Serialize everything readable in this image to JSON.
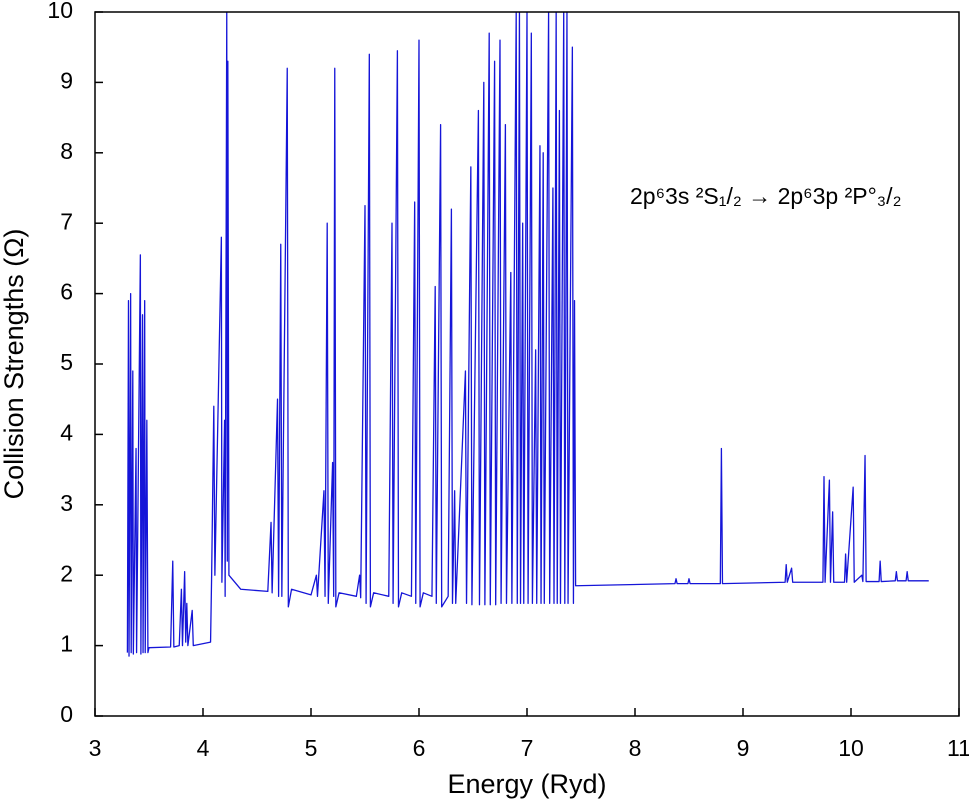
{
  "chart_data": {
    "type": "line",
    "xlabel": "Energy (Ryd)",
    "ylabel": "Collision Strengths (Ω)",
    "annotation": "2p⁶3s ²S₁/₂ → 2p⁶3p ²P°₃/₂",
    "xlim": [
      3,
      11
    ],
    "xticks": [
      3,
      4,
      5,
      6,
      7,
      8,
      9,
      10,
      11
    ],
    "ylim": [
      0,
      10
    ],
    "yticks": [
      0,
      1,
      2,
      3,
      4,
      5,
      6,
      7,
      8,
      9,
      10
    ],
    "series": [
      {
        "color": "#1515d8",
        "x": [
          3.3,
          3.31,
          3.315,
          3.33,
          3.335,
          3.35,
          3.355,
          3.38,
          3.385,
          3.42,
          3.425,
          3.44,
          3.445,
          3.46,
          3.465,
          3.48,
          3.49,
          3.5,
          3.7,
          3.72,
          3.73,
          3.78,
          3.8,
          3.81,
          3.83,
          3.84,
          3.85,
          3.86,
          3.9,
          3.91,
          4.07,
          4.08,
          4.1,
          4.11,
          4.17,
          4.175,
          4.2,
          4.205,
          4.22,
          4.225,
          4.23,
          4.24,
          4.35,
          4.6,
          4.63,
          4.64,
          4.69,
          4.7,
          4.72,
          4.73,
          4.78,
          4.79,
          4.82,
          5.0,
          5.05,
          5.06,
          5.12,
          5.13,
          5.15,
          5.16,
          5.2,
          5.21,
          5.22,
          5.23,
          5.26,
          5.42,
          5.45,
          5.46,
          5.5,
          5.51,
          5.54,
          5.55,
          5.58,
          5.72,
          5.75,
          5.76,
          5.8,
          5.81,
          5.84,
          5.93,
          5.96,
          5.97,
          6.0,
          6.01,
          6.04,
          6.12,
          6.15,
          6.16,
          6.2,
          6.21,
          6.27,
          6.3,
          6.31,
          6.33,
          6.34,
          6.43,
          6.44,
          6.48,
          6.49,
          6.55,
          6.56,
          6.6,
          6.61,
          6.65,
          6.66,
          6.7,
          6.71,
          6.75,
          6.76,
          6.8,
          6.81,
          6.85,
          6.86,
          6.9,
          6.91,
          6.93,
          6.94,
          6.96,
          6.97,
          7.0,
          7.01,
          7.04,
          7.05,
          7.08,
          7.09,
          7.12,
          7.13,
          7.15,
          7.16,
          7.2,
          7.21,
          7.24,
          7.25,
          7.27,
          7.28,
          7.3,
          7.31,
          7.34,
          7.35,
          7.37,
          7.38,
          7.42,
          7.43,
          7.44,
          7.45,
          8.37,
          8.38,
          8.39,
          8.49,
          8.5,
          8.51,
          8.79,
          8.8,
          8.81,
          9.39,
          9.4,
          9.41,
          9.45,
          9.46,
          9.74,
          9.75,
          9.76,
          9.8,
          9.81,
          9.83,
          9.84,
          9.94,
          9.95,
          9.96,
          10.02,
          10.03,
          10.1,
          10.11,
          10.13,
          10.14,
          10.26,
          10.27,
          10.28,
          10.41,
          10.42,
          10.43,
          10.51,
          10.52,
          10.53,
          10.72
        ],
        "values": [
          0.9,
          5.9,
          0.85,
          6.0,
          0.9,
          4.9,
          0.88,
          3.8,
          0.9,
          6.55,
          0.88,
          5.7,
          0.9,
          5.9,
          0.9,
          4.2,
          0.9,
          0.97,
          0.98,
          2.2,
          0.98,
          1.0,
          1.8,
          1.0,
          2.05,
          1.05,
          1.6,
          1.0,
          1.5,
          1.0,
          1.05,
          2.0,
          4.4,
          2.0,
          6.8,
          1.9,
          4.2,
          1.7,
          10,
          2.2,
          9.3,
          2.0,
          1.8,
          1.77,
          2.75,
          1.75,
          4.5,
          1.7,
          6.7,
          1.7,
          9.2,
          1.55,
          1.8,
          1.72,
          2.0,
          1.7,
          3.2,
          1.7,
          7.0,
          1.6,
          3.6,
          1.7,
          9.2,
          1.55,
          1.75,
          1.7,
          2.0,
          1.68,
          7.25,
          1.6,
          9.4,
          1.55,
          1.75,
          1.7,
          7.0,
          1.6,
          9.45,
          1.55,
          1.75,
          1.7,
          7.3,
          1.6,
          9.6,
          1.55,
          1.75,
          1.7,
          6.1,
          1.6,
          8.4,
          1.55,
          1.7,
          7.2,
          1.6,
          3.2,
          1.6,
          4.9,
          1.6,
          7.8,
          1.58,
          8.6,
          1.58,
          9.0,
          1.58,
          9.7,
          1.58,
          9.3,
          1.58,
          9.6,
          1.6,
          8.4,
          1.6,
          6.3,
          1.6,
          10,
          1.6,
          10,
          1.6,
          7.0,
          1.6,
          10,
          1.6,
          9.7,
          1.6,
          5.2,
          1.6,
          8.1,
          1.6,
          8.0,
          1.6,
          10,
          1.6,
          7.5,
          1.6,
          10,
          1.6,
          8.6,
          1.6,
          10,
          1.6,
          10,
          1.6,
          9.5,
          1.6,
          5.9,
          1.85,
          1.88,
          1.95,
          1.88,
          1.88,
          1.95,
          1.88,
          1.88,
          3.8,
          1.88,
          1.9,
          2.15,
          1.9,
          2.1,
          1.9,
          1.9,
          3.4,
          1.9,
          3.35,
          1.9,
          2.9,
          1.9,
          1.9,
          2.3,
          1.9,
          3.25,
          1.9,
          2.0,
          1.91,
          3.7,
          1.91,
          1.91,
          2.2,
          1.91,
          1.92,
          2.05,
          1.92,
          1.92,
          2.05,
          1.92,
          1.92
        ]
      }
    ]
  }
}
